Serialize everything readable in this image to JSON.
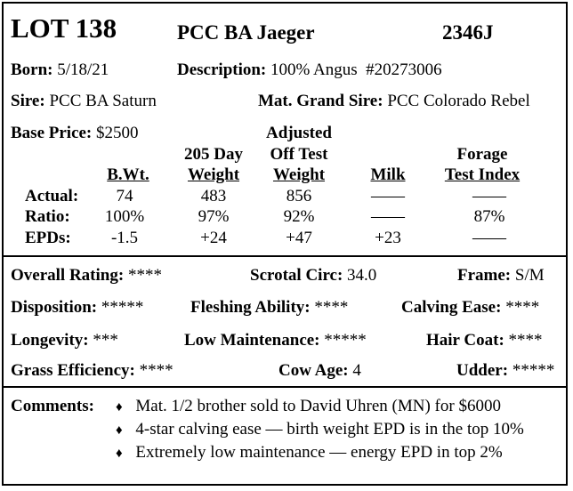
{
  "header": {
    "lot_label": "LOT 138",
    "animal_name": "PCC BA Jaeger",
    "tag": "2346J"
  },
  "info": {
    "born_label": "Born:",
    "born_value": "5/18/21",
    "description_label": "Description:",
    "description_value": "100% Angus  #20273006",
    "sire_label": "Sire:",
    "sire_value": "PCC BA Saturn",
    "mgs_label": "Mat. Grand Sire:",
    "mgs_value": "PCC Colorado Rebel",
    "base_price_label": "Base Price:",
    "base_price_value": "$2500"
  },
  "perf_table": {
    "headers": {
      "bwt": "B.Wt.",
      "w205_line1": "205 Day",
      "w205_line2": "Weight",
      "adj_line1": "Adjusted",
      "adj_line2": "Off Test",
      "adj_line3": "Weight",
      "milk": "Milk",
      "forage_line1": "Forage",
      "forage_line2": "Test Index"
    },
    "rows": [
      {
        "label": "Actual:",
        "bwt": "74",
        "w205": "483",
        "adj": "856",
        "milk": "——",
        "forage": "——"
      },
      {
        "label": "Ratio:",
        "bwt": "100%",
        "w205": "97%",
        "adj": "92%",
        "milk": "——",
        "forage": "87%"
      },
      {
        "label": "EPDs:",
        "bwt": "-1.5",
        "w205": "+24",
        "adj": "+47",
        "milk": "+23",
        "forage": "——"
      }
    ]
  },
  "ratings": {
    "overall_label": "Overall Rating:",
    "overall_value": "****",
    "scrotal_label": "Scrotal Circ:",
    "scrotal_value": "34.0",
    "frame_label": "Frame:",
    "frame_value": "S/M",
    "disposition_label": "Disposition:",
    "disposition_value": "*****",
    "fleshing_label": "Fleshing Ability:",
    "fleshing_value": "****",
    "calving_label": "Calving Ease:",
    "calving_value": "****",
    "longevity_label": "Longevity:",
    "longevity_value": "***",
    "lowmaint_label": "Low Maintenance:",
    "lowmaint_value": "*****",
    "haircoat_label": "Hair Coat:",
    "haircoat_value": "****",
    "grass_label": "Grass Efficiency:",
    "grass_value": "****",
    "cowage_label": "Cow Age:",
    "cowage_value": "4",
    "udder_label": "Udder:",
    "udder_value": "*****"
  },
  "comments": {
    "label": "Comments:",
    "bullet": "♦",
    "items": [
      "Mat. 1/2 brother sold to David Uhren (MN) for $6000",
      "4-star calving ease — birth weight EPD is in the top 10%",
      "Extremely low maintenance — energy EPD in top 2%"
    ]
  }
}
